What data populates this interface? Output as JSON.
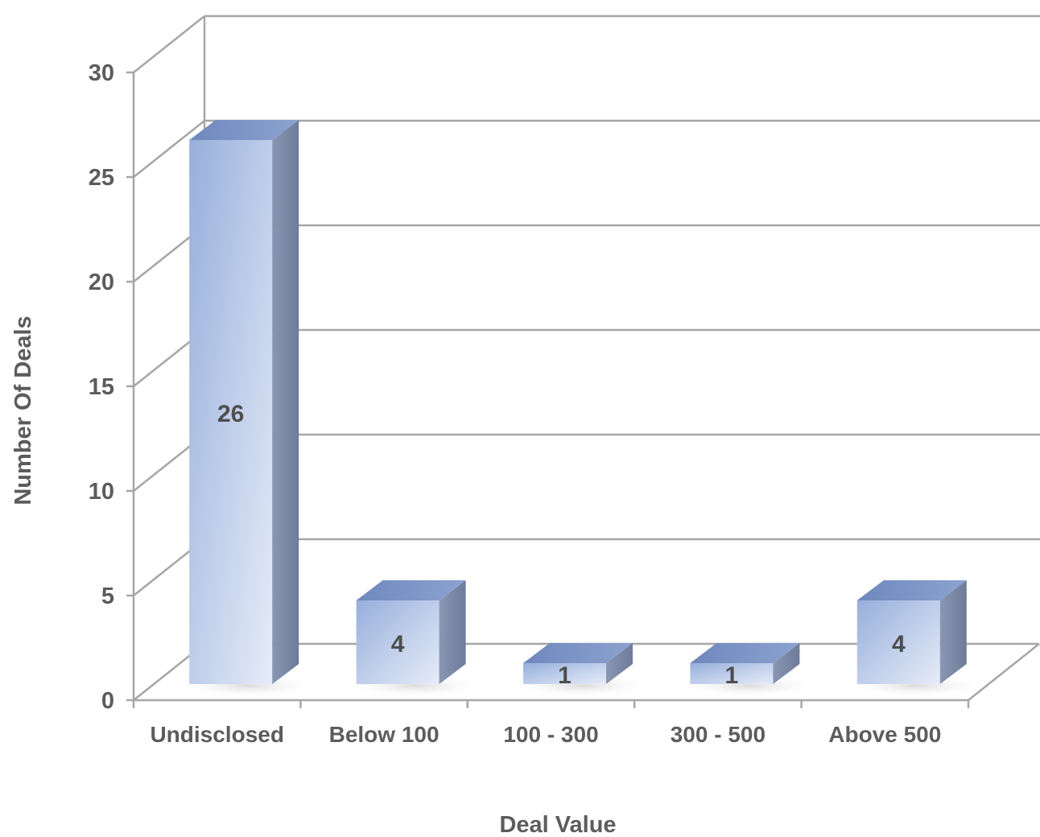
{
  "chart_data": {
    "type": "bar",
    "style": "3d-column",
    "categories": [
      "Undisclosed",
      "Below 100",
      "100 - 300",
      "300 - 500",
      "Above 500"
    ],
    "values": [
      26,
      4,
      1,
      1,
      4
    ],
    "data_labels": [
      "26",
      "4",
      "1",
      "1",
      "4"
    ],
    "xlabel": "Deal Value",
    "ylabel": "Number Of Deals",
    "ylim": [
      0,
      30
    ],
    "yticks": [
      0,
      5,
      10,
      15,
      20,
      25,
      30
    ],
    "grid": true,
    "legend": "none",
    "colors": {
      "bar_front_light": "#e6ecf8",
      "bar_front_dark": "#97afdc",
      "bar_top": "#7e96c8",
      "bar_side": "#7d8aa6",
      "grid": "#a6a6a6",
      "text": "#5c5c5c"
    }
  }
}
